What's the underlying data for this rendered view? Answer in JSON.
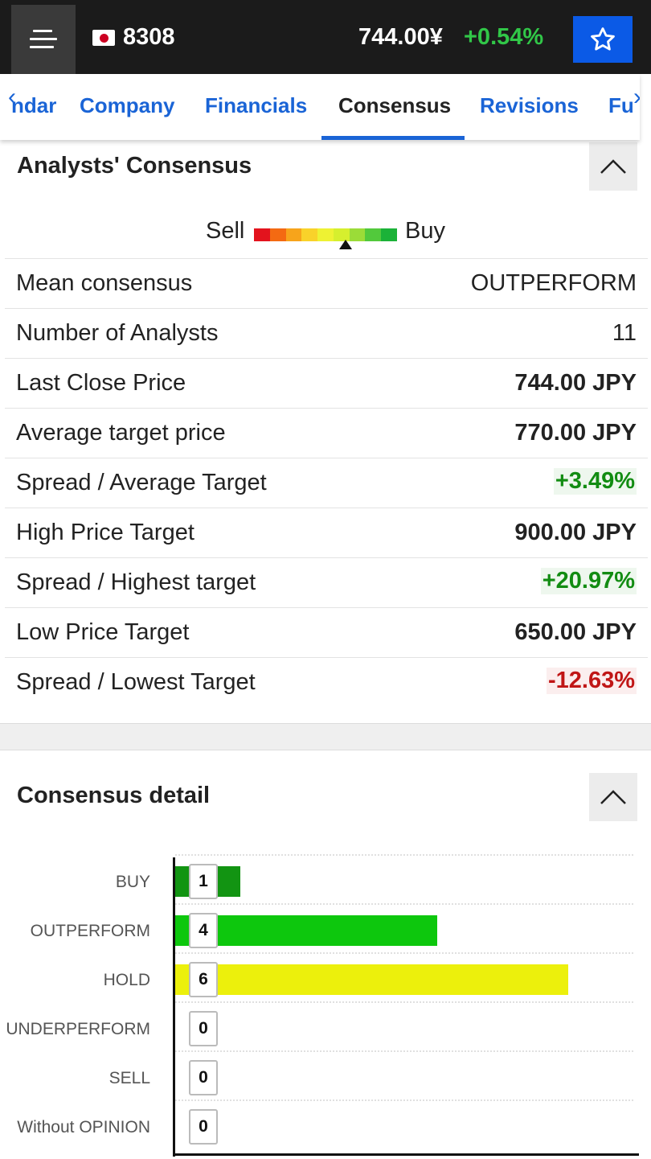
{
  "header": {
    "ticker": "8308",
    "price": "744.00¥",
    "change": "+0.54%",
    "colors": {
      "background": "#1b1b1b",
      "change_positive": "#31c748",
      "star_button": "#0b5ae6"
    }
  },
  "tabs": {
    "items": [
      {
        "label": "ndar",
        "active": false
      },
      {
        "label": "Company",
        "active": false
      },
      {
        "label": "Financials",
        "active": false
      },
      {
        "label": "Consensus",
        "active": true
      },
      {
        "label": "Revisions",
        "active": false
      },
      {
        "label": "Fu",
        "active": false
      }
    ],
    "prev_arrow": "‹",
    "next_arrow": "›"
  },
  "consensus": {
    "title": "Analysts' Consensus",
    "gauge": {
      "sell_label": "Sell",
      "buy_label": "Buy",
      "colors": [
        "#e3131d",
        "#f46a12",
        "#f7a41b",
        "#f9d22a",
        "#eef233",
        "#d6ef2e",
        "#9bdc38",
        "#52c93c",
        "#1bb238"
      ],
      "marker_position": 0.64
    },
    "rows": [
      {
        "label": "Mean consensus",
        "value": "OUTPERFORM",
        "style": "plain"
      },
      {
        "label": "Number of Analysts",
        "value": "11",
        "style": "plain"
      },
      {
        "label": "Last Close Price",
        "value": "744.00 JPY",
        "style": "bold"
      },
      {
        "label": "Average target price",
        "value": "770.00 JPY",
        "style": "bold"
      },
      {
        "label": "Spread / Average Target",
        "value": "+3.49%",
        "style": "pos"
      },
      {
        "label": "High Price Target",
        "value": "900.00 JPY",
        "style": "bold"
      },
      {
        "label": "Spread / Highest target",
        "value": "+20.97%",
        "style": "pos"
      },
      {
        "label": "Low Price Target",
        "value": "650.00 JPY",
        "style": "bold"
      },
      {
        "label": "Spread / Lowest Target",
        "value": "-12.63%",
        "style": "neg"
      }
    ]
  },
  "detail": {
    "title": "Consensus detail"
  },
  "chart_data": {
    "type": "bar",
    "orientation": "horizontal",
    "categories": [
      "BUY",
      "OUTPERFORM",
      "HOLD",
      "UNDERPERFORM",
      "SELL",
      "Without OPINION"
    ],
    "values": [
      1,
      4,
      6,
      0,
      0,
      0
    ],
    "colors": [
      "#129412",
      "#0dc70d",
      "#ecf00c",
      "#cccccc",
      "#cccccc",
      "#cccccc"
    ],
    "xlim": [
      0,
      7
    ],
    "grid": true
  }
}
